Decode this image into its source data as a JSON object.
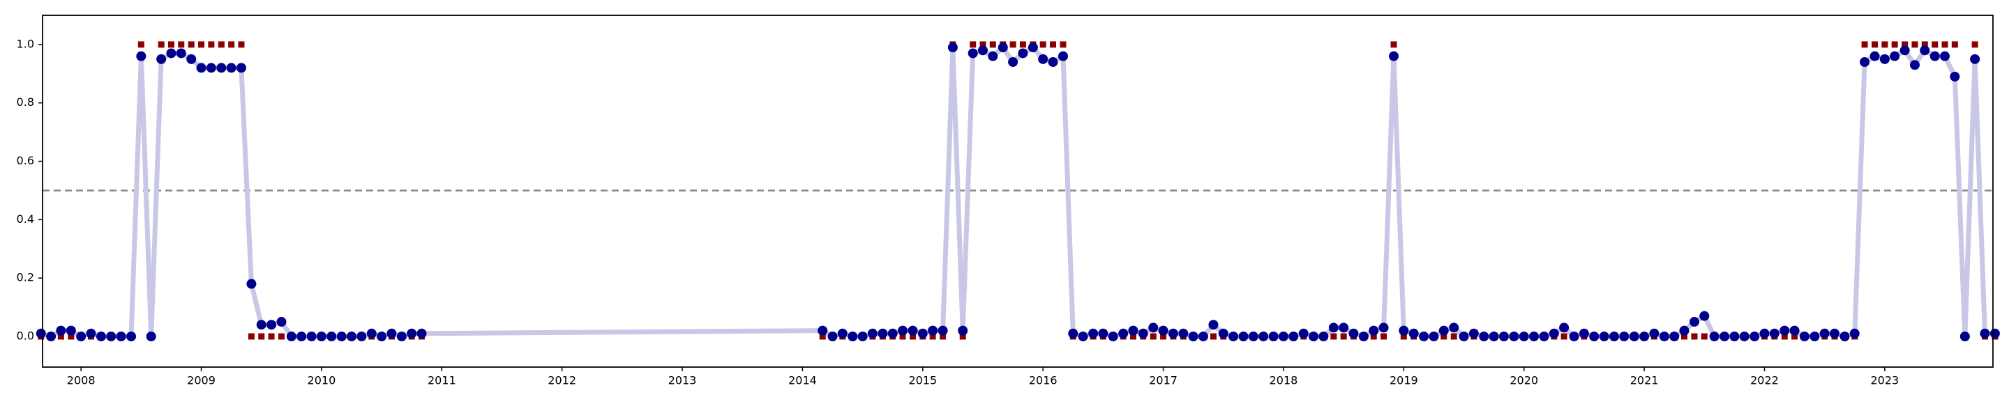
{
  "chart_data": {
    "type": "scatter",
    "x": [
      2007.667,
      2007.75,
      2007.833,
      2007.917,
      2008,
      2008.083,
      2008.167,
      2008.25,
      2008.333,
      2008.417,
      2008.5,
      2008.583,
      2008.667,
      2008.75,
      2008.833,
      2008.917,
      2009,
      2009.083,
      2009.167,
      2009.25,
      2009.333,
      2009.417,
      2009.5,
      2009.583,
      2009.667,
      2009.75,
      2009.833,
      2009.917,
      2010,
      2010.083,
      2010.167,
      2010.25,
      2010.333,
      2010.417,
      2010.5,
      2010.583,
      2010.667,
      2010.75,
      2010.833,
      2014.167,
      2014.25,
      2014.333,
      2014.417,
      2014.5,
      2014.583,
      2014.667,
      2014.75,
      2014.833,
      2014.917,
      2015,
      2015.083,
      2015.167,
      2015.25,
      2015.333,
      2015.417,
      2015.5,
      2015.583,
      2015.667,
      2015.75,
      2015.833,
      2015.917,
      2016,
      2016.083,
      2016.167,
      2016.25,
      2016.333,
      2016.417,
      2016.5,
      2016.583,
      2016.667,
      2016.75,
      2016.833,
      2016.917,
      2017,
      2017.083,
      2017.167,
      2017.25,
      2017.333,
      2017.417,
      2017.5,
      2017.583,
      2017.667,
      2017.75,
      2017.833,
      2017.917,
      2018,
      2018.083,
      2018.167,
      2018.25,
      2018.333,
      2018.417,
      2018.5,
      2018.583,
      2018.667,
      2018.75,
      2018.833,
      2018.917,
      2019,
      2019.083,
      2019.167,
      2019.25,
      2019.333,
      2019.417,
      2019.5,
      2019.583,
      2019.667,
      2019.75,
      2019.833,
      2019.917,
      2020,
      2020.083,
      2020.167,
      2020.25,
      2020.333,
      2020.417,
      2020.5,
      2020.583,
      2020.667,
      2020.75,
      2020.833,
      2020.917,
      2021,
      2021.083,
      2021.167,
      2021.25,
      2021.333,
      2021.417,
      2021.5,
      2021.583,
      2021.667,
      2021.75,
      2021.833,
      2021.917,
      2022,
      2022.083,
      2022.167,
      2022.25,
      2022.333,
      2022.417,
      2022.5,
      2022.583,
      2022.667,
      2022.75,
      2022.833,
      2022.917,
      2023,
      2023.083,
      2023.167,
      2023.25,
      2023.333,
      2023.417,
      2023.5,
      2023.583,
      2023.667,
      2023.75,
      2023.833,
      2023.917
    ],
    "series": [
      {
        "color": "#00008b",
        "line_color": "#c8c8e6",
        "marker": "circle",
        "connect": true,
        "values": [
          0.01,
          0.0,
          0.02,
          0.02,
          0.0,
          0.01,
          0.0,
          0.0,
          0.0,
          0.0,
          0.96,
          0.0,
          0.95,
          0.97,
          0.97,
          0.95,
          0.92,
          0.92,
          0.92,
          0.92,
          0.92,
          0.18,
          0.04,
          0.04,
          0.05,
          0.0,
          0.0,
          0.0,
          0.0,
          0.0,
          0.0,
          0.0,
          0.0,
          0.01,
          0.0,
          0.01,
          0.0,
          0.01,
          0.01,
          0.02,
          0.0,
          0.01,
          0.0,
          0.0,
          0.01,
          0.01,
          0.01,
          0.02,
          0.02,
          0.01,
          0.02,
          0.02,
          0.99,
          0.02,
          0.97,
          0.98,
          0.96,
          0.99,
          0.94,
          0.97,
          0.99,
          0.95,
          0.94,
          0.96,
          0.01,
          0.0,
          0.01,
          0.01,
          0.0,
          0.01,
          0.02,
          0.01,
          0.03,
          0.02,
          0.01,
          0.01,
          0.0,
          0.0,
          0.04,
          0.01,
          0.0,
          0.0,
          0.0,
          0.0,
          0.0,
          0.0,
          0.0,
          0.01,
          0.0,
          0.0,
          0.03,
          0.03,
          0.01,
          0.0,
          0.02,
          0.03,
          0.96,
          0.02,
          0.01,
          0.0,
          0.0,
          0.02,
          0.03,
          0.0,
          0.01,
          0.0,
          0.0,
          0.0,
          0.0,
          0.0,
          0.0,
          0.0,
          0.01,
          0.03,
          0.0,
          0.01,
          0.0,
          0.0,
          0.0,
          0.0,
          0.0,
          0.0,
          0.01,
          0.0,
          0.0,
          0.02,
          0.05,
          0.07,
          0.0,
          0.0,
          0.0,
          0.0,
          0.0,
          0.01,
          0.01,
          0.02,
          0.02,
          0.0,
          0.0,
          0.01,
          0.01,
          0.0,
          0.01,
          0.94,
          0.96,
          0.95,
          0.96,
          0.98,
          0.93,
          0.98,
          0.96,
          0.96,
          0.89,
          0.0,
          0.95,
          0.01,
          0.01
        ]
      },
      {
        "color": "#8b0000",
        "marker": "square",
        "connect": false,
        "values": [
          0,
          0,
          0,
          0,
          0,
          0,
          0,
          0,
          0,
          0,
          1,
          0,
          1,
          1,
          1,
          1,
          1,
          1,
          1,
          1,
          1,
          0,
          0,
          0,
          0,
          0,
          0,
          0,
          0,
          0,
          0,
          0,
          0,
          0,
          0,
          0,
          0,
          0,
          0,
          0,
          0,
          0,
          0,
          0,
          0,
          0,
          0,
          0,
          0,
          0,
          0,
          0,
          1,
          0,
          1,
          1,
          1,
          1,
          1,
          1,
          1,
          1,
          1,
          1,
          0,
          0,
          0,
          0,
          0,
          0,
          0,
          0,
          0,
          0,
          0,
          0,
          0,
          0,
          0,
          0,
          0,
          0,
          0,
          0,
          0,
          0,
          0,
          0,
          0,
          0,
          0,
          0,
          0,
          0,
          0,
          0,
          1,
          0,
          0,
          0,
          0,
          0,
          0,
          0,
          0,
          0,
          0,
          0,
          0,
          0,
          0,
          0,
          0,
          0,
          0,
          0,
          0,
          0,
          0,
          0,
          0,
          0,
          0,
          0,
          0,
          0,
          0,
          0,
          0,
          0,
          0,
          0,
          0,
          0,
          0,
          0,
          0,
          0,
          0,
          0,
          0,
          0,
          0,
          1,
          1,
          1,
          1,
          1,
          1,
          1,
          1,
          1,
          1,
          0,
          1,
          0,
          0
        ]
      }
    ],
    "hline": {
      "value": 0.5,
      "color": "#888888",
      "style": "dashed"
    },
    "xlim": [
      2007.68,
      2023.9
    ],
    "xticks": [
      2008,
      2009,
      2010,
      2011,
      2012,
      2013,
      2014,
      2015,
      2016,
      2017,
      2018,
      2019,
      2020,
      2021,
      2022,
      2023
    ],
    "ylim": [
      -0.105,
      1.1
    ],
    "yticks": [
      {
        "value": 0,
        "label": "0.0"
      },
      0.2,
      0.4,
      0.6,
      0.8,
      {
        "value": 1,
        "label": "1.0"
      }
    ],
    "grid": false
  }
}
